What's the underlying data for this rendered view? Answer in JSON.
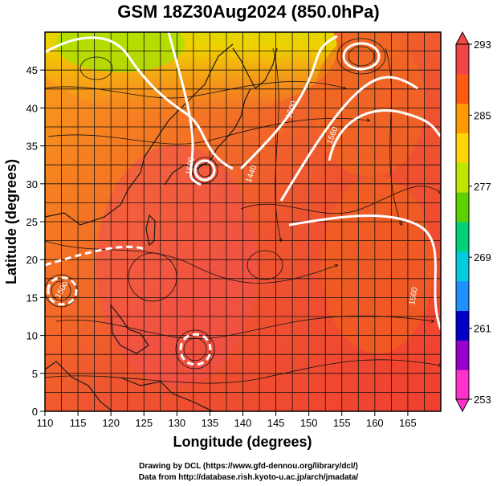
{
  "title": "GSM 18Z30Aug2024 (850.0hPa)",
  "x_axis": {
    "label": "Longitude (degrees)",
    "min": 110,
    "max": 170,
    "ticks": [
      "110",
      "115",
      "120",
      "125",
      "130",
      "135",
      "140",
      "145",
      "150",
      "155",
      "160",
      "165"
    ]
  },
  "y_axis": {
    "label": "Latitude  (degrees)",
    "min": 0,
    "max": 50,
    "ticks": [
      "0",
      "5",
      "10",
      "15",
      "20",
      "25",
      "30",
      "35",
      "40",
      "45"
    ]
  },
  "colorbar": {
    "min": 253,
    "max": 293,
    "labels": [
      "293",
      "285",
      "277",
      "269",
      "261",
      "253"
    ],
    "colors": [
      "#ff33cc",
      "#9a00cc",
      "#0000c8",
      "#1e90ff",
      "#00ccdd",
      "#00d27a",
      "#5ed200",
      "#bde600",
      "#ffd400",
      "#ff9a00",
      "#ff5a14",
      "#f04646"
    ]
  },
  "contour_labels": [
    "1500",
    "1560",
    "1440",
    "1500",
    "1560",
    "1500"
  ],
  "credits": {
    "line1": "Drawing by DCL (https://www.gfd-dennou.org/library/dcl/)",
    "line2": "Data from http://database.rish.kyoto-u.ac.jp/arch/jmadata/"
  }
}
